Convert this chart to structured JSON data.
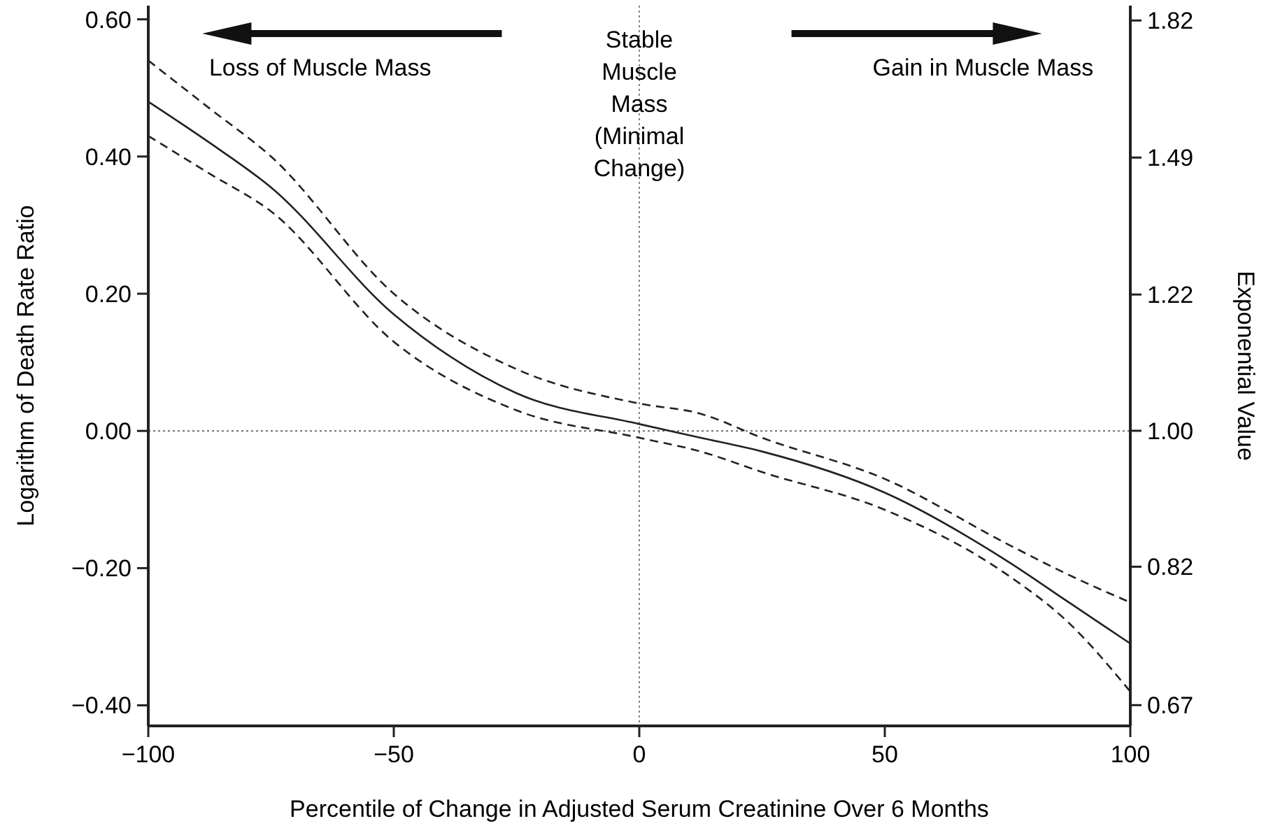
{
  "chart_data": {
    "type": "line",
    "xlabel": "Percentile of Change in Adjusted Serum Creatinine Over 6 Months",
    "ylabel": "Logarithm of Death Rate Ratio",
    "y2label": "Exponential Value",
    "xlim": [
      -100,
      100
    ],
    "xticks": [
      {
        "value": -100,
        "label": "−100"
      },
      {
        "value": -50,
        "label": "−50"
      },
      0,
      50,
      100
    ],
    "ylim": [
      -0.43,
      0.62
    ],
    "yticks": [
      {
        "value": -0.4,
        "label": "−0.40"
      },
      {
        "value": -0.2,
        "label": "−0.20"
      },
      {
        "value": 0,
        "label": "0.00"
      },
      {
        "value": 0.2,
        "label": "0.20"
      },
      {
        "value": 0.4,
        "label": "0.40"
      },
      {
        "value": 0.6,
        "label": "0.60"
      }
    ],
    "log": "y2",
    "y2lim": [
      0.65,
      1.86
    ],
    "y2ticks": [
      {
        "value": 0.67,
        "label": "0.67"
      },
      {
        "value": 0.82,
        "label": "0.82"
      },
      {
        "value": 1,
        "label": "1.00"
      },
      {
        "value": 1.22,
        "label": "1.22"
      },
      {
        "value": 1.49,
        "label": "1.49"
      },
      {
        "value": 1.82,
        "label": "1.82"
      }
    ],
    "grid": false,
    "x": [
      -100,
      -87.5,
      -75,
      -50,
      -25,
      0,
      12.5,
      25,
      50,
      75,
      87.5,
      100
    ],
    "series": [
      {
        "color": "#222222",
        "line_style": "solid",
        "values": [
          0.48,
          0.42,
          0.355,
          0.17,
          0.055,
          0.01,
          -0.01,
          -0.03,
          -0.09,
          -0.19,
          -0.25,
          -0.31
        ]
      },
      {
        "color": "#222222",
        "line_style": "dashed",
        "values": [
          0.54,
          0.47,
          0.4,
          0.2,
          0.09,
          0.04,
          0.025,
          -0.01,
          -0.07,
          -0.165,
          -0.21,
          -0.25
        ]
      },
      {
        "color": "#222222",
        "line_style": "dashed",
        "values": [
          0.43,
          0.375,
          0.32,
          0.13,
          0.03,
          -0.01,
          -0.03,
          -0.06,
          -0.115,
          -0.21,
          -0.28,
          -0.38
        ]
      }
    ],
    "ref_lines": [
      {
        "axis": "x",
        "value": 0,
        "line_style": "dotted",
        "color": "#666666"
      },
      {
        "axis": "y",
        "value": 0,
        "line_style": "dotted",
        "color": "#444444"
      }
    ],
    "annotations": [
      "Loss of Muscle Mass",
      "Stable\nMuscle\nMass\n(Minimal\nChange)",
      "Gain in Muscle Mass"
    ]
  }
}
